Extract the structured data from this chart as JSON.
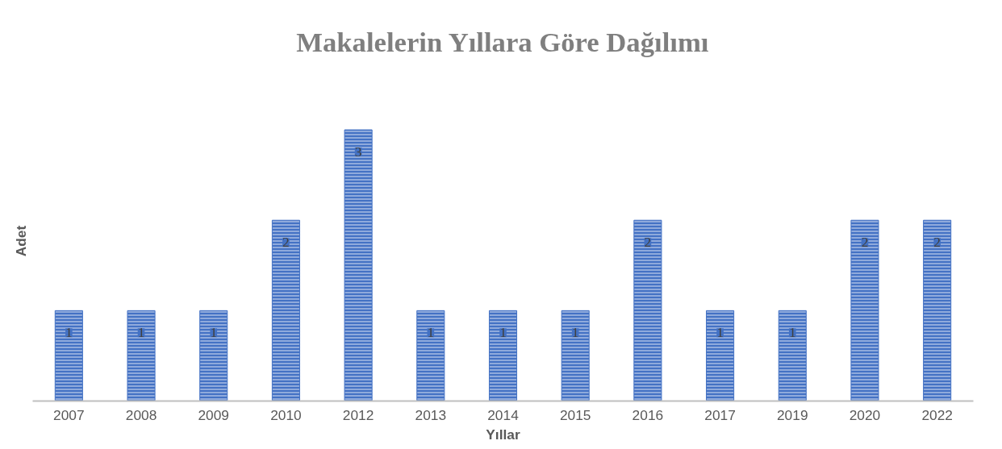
{
  "chart_data": {
    "type": "bar",
    "title": "Makalelerin Yıllara Göre Dağılımı",
    "xlabel": "Yıllar",
    "ylabel": "Adet",
    "categories": [
      "2007",
      "2008",
      "2009",
      "2010",
      "2012",
      "2013",
      "2014",
      "2015",
      "2016",
      "2017",
      "2019",
      "2020",
      "2022"
    ],
    "values": [
      1,
      1,
      1,
      2,
      3,
      1,
      1,
      1,
      2,
      1,
      1,
      2,
      2
    ],
    "color": "#4472c4",
    "data_labels": true,
    "grid": false,
    "tick_labels": "x"
  }
}
